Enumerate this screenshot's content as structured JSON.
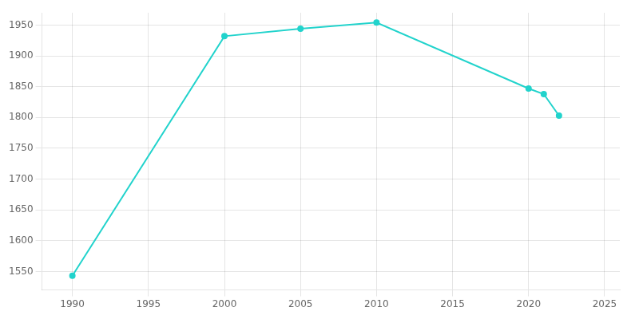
{
  "chart_data": {
    "type": "line",
    "x": [
      1990,
      2000,
      2005,
      2010,
      2020,
      2021,
      2022
    ],
    "values": [
      1543,
      1932,
      1944,
      1954,
      1847,
      1838,
      1803
    ],
    "color": "#22d3cc",
    "marker": "circle",
    "xlim": [
      1988,
      2026
    ],
    "ylim": [
      1520,
      1970
    ],
    "xticks": [
      1990,
      1995,
      2000,
      2005,
      2010,
      2015,
      2020,
      2025
    ],
    "yticks": [
      1550,
      1600,
      1650,
      1700,
      1750,
      1800,
      1850,
      1900,
      1950
    ],
    "grid": true
  }
}
